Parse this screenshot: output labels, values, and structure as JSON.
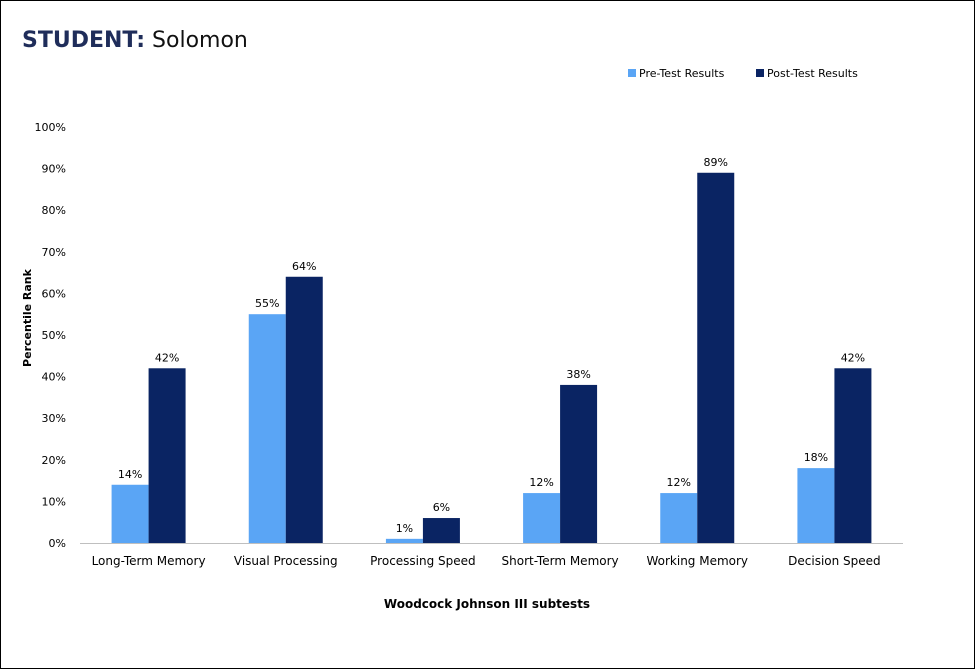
{
  "header": {
    "title_label": "STUDENT:",
    "student_name": "Solomon"
  },
  "chart_data": {
    "type": "bar",
    "title": "",
    "xlabel": "Woodcock Johnson III subtests",
    "ylabel": "Percentile Rank",
    "ylim": [
      0,
      100
    ],
    "y_ticks": [
      "0%",
      "10%",
      "20%",
      "30%",
      "40%",
      "50%",
      "60%",
      "70%",
      "80%",
      "90%",
      "100%"
    ],
    "grid": false,
    "legend_position": "top-right",
    "categories": [
      "Long-Term Memory",
      "Visual Processing",
      "Processing Speed",
      "Short-Term Memory",
      "Working Memory",
      "Decision Speed"
    ],
    "series": [
      {
        "name": "Pre-Test Results",
        "color": "#5aa5f5",
        "values": [
          14,
          55,
          1,
          12,
          12,
          18
        ],
        "labels": [
          "14%",
          "55%",
          "1%",
          "12%",
          "12%",
          "18%"
        ]
      },
      {
        "name": "Post-Test Results",
        "color": "#0a2463",
        "values": [
          42,
          64,
          6,
          38,
          89,
          42
        ],
        "labels": [
          "42%",
          "64%",
          "6%",
          "38%",
          "89%",
          "42%"
        ]
      }
    ]
  }
}
